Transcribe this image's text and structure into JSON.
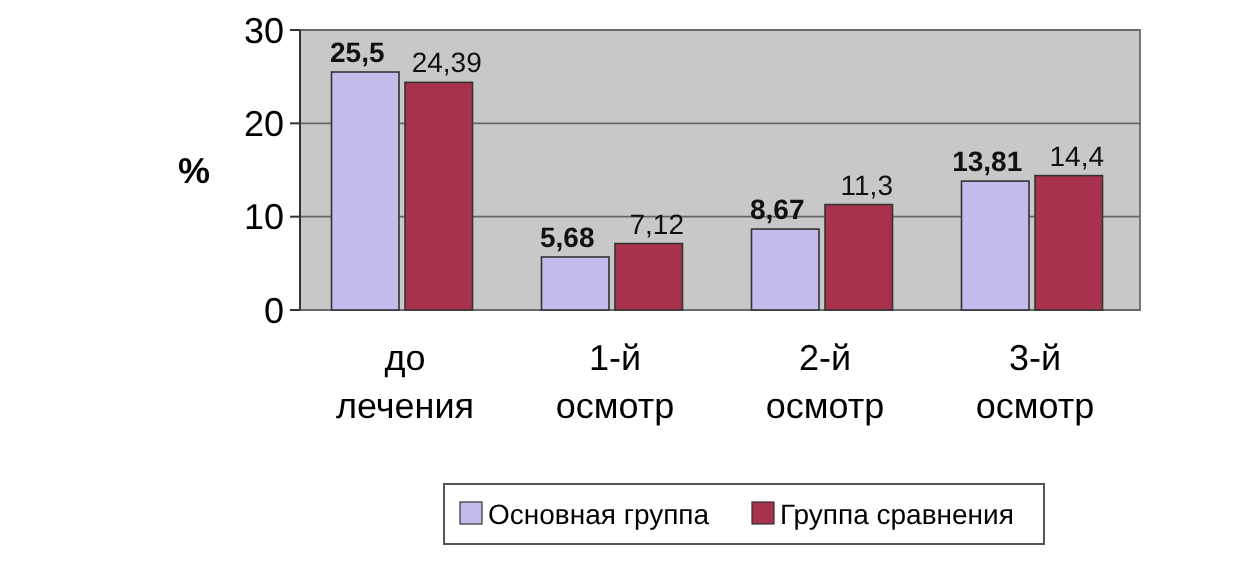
{
  "chart_data": {
    "type": "bar",
    "ylabel": "%",
    "categories": [
      "до лечения",
      "1-й осмотр",
      "2-й осмотр",
      "3-й осмотр"
    ],
    "series": [
      {
        "name": "Основная группа",
        "color": "#c4bcec",
        "values": [
          25.5,
          5.68,
          8.67,
          13.81
        ],
        "value_labels": [
          "25,5",
          "5,68",
          "8,67",
          "13,81"
        ]
      },
      {
        "name": "Группа сравнения",
        "color": "#a8324e",
        "values": [
          24.39,
          7.12,
          11.3,
          14.4
        ],
        "value_labels": [
          "24,39",
          "7,12",
          "11,3",
          "14,4"
        ]
      }
    ],
    "ylim": [
      0,
      30
    ],
    "yticks": [
      0,
      10,
      20,
      30
    ],
    "grid": "y",
    "legend": "bottom"
  }
}
